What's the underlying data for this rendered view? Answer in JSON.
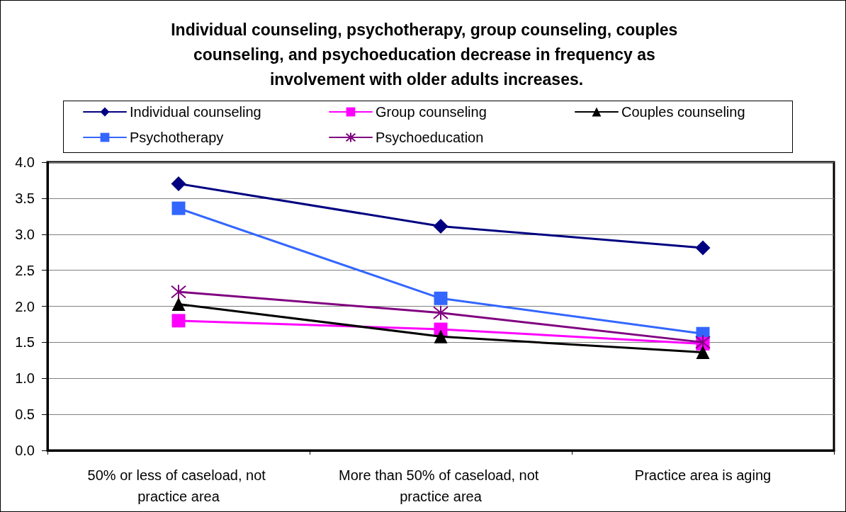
{
  "chart_data": {
    "type": "line",
    "title": "Individual counseling, psychotherapy, group counseling, couples counseling, and psychoeducation decrease in frequency as involvement with older adults increases.",
    "categories": [
      "50% or less of caseload, not practice area",
      "More than 50% of caseload, not practice area",
      "Practice area is aging"
    ],
    "series": [
      {
        "name": "Individual counseling",
        "color": "#000080",
        "marker": "diamond",
        "values": [
          3.7,
          3.11,
          2.81
        ]
      },
      {
        "name": "Psychotherapy",
        "color": "#3366ff",
        "marker": "square",
        "values": [
          3.36,
          2.11,
          1.62
        ]
      },
      {
        "name": "Group counseling",
        "color": "#ff00ff",
        "marker": "square",
        "values": [
          1.8,
          1.68,
          1.48
        ]
      },
      {
        "name": "Psychoeducation",
        "color": "#800080",
        "marker": "cross",
        "values": [
          2.2,
          1.91,
          1.5
        ]
      },
      {
        "name": "Couples counseling",
        "color": "#000000",
        "marker": "triangle",
        "values": [
          2.03,
          1.58,
          1.36
        ]
      }
    ],
    "ylim": [
      0,
      4
    ],
    "yticks": [
      {
        "value": 0,
        "label": "0.0"
      },
      0.5,
      {
        "value": 1,
        "label": "1.0"
      },
      1.5,
      {
        "value": 2,
        "label": "2.0"
      },
      2.5,
      {
        "value": 3,
        "label": "3.0"
      },
      3.5,
      {
        "value": 4,
        "label": "4.0"
      }
    ],
    "grid": "y",
    "legend": "top",
    "line_style": "solid"
  }
}
